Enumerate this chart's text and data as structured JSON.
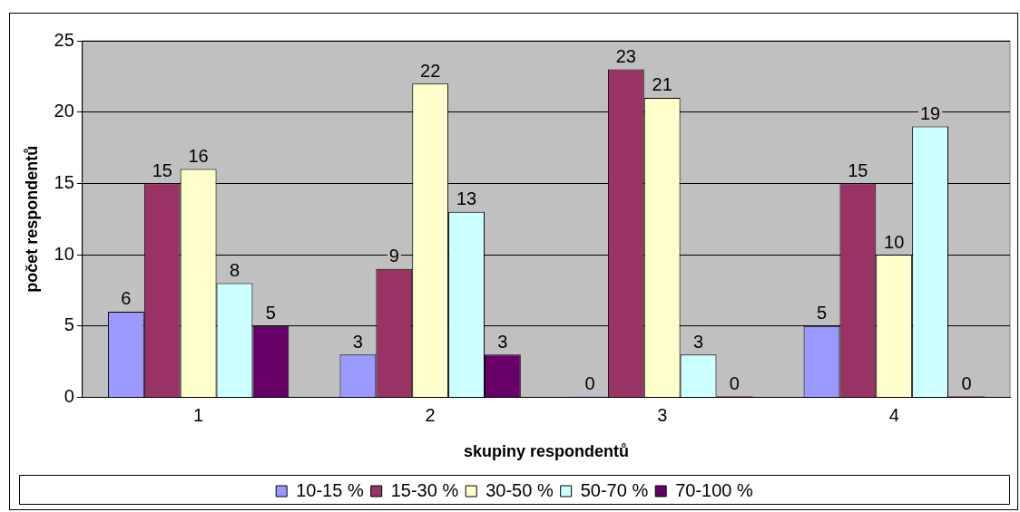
{
  "chart_data": {
    "type": "bar",
    "xlabel": "skupiny respondentů",
    "ylabel": "počet respondentů",
    "categories": [
      "1",
      "2",
      "3",
      "4"
    ],
    "series": [
      {
        "name": "10-15 %",
        "color": "#9999ff",
        "values": [
          6,
          3,
          0,
          5
        ]
      },
      {
        "name": "15-30 %",
        "color": "#993366",
        "values": [
          15,
          9,
          23,
          15
        ]
      },
      {
        "name": "30-50 %",
        "color": "#ffffcc",
        "values": [
          16,
          22,
          21,
          10
        ]
      },
      {
        "name": "50-70 %",
        "color": "#ccffff",
        "values": [
          8,
          13,
          3,
          19
        ]
      },
      {
        "name": "70-100 %",
        "color": "#660066",
        "values": [
          5,
          3,
          0,
          0
        ]
      }
    ],
    "ylim": [
      0,
      25
    ],
    "yticks": [
      0,
      5,
      10,
      15,
      20,
      25
    ],
    "grid": "y",
    "legend": "bottom",
    "data_labels": true
  }
}
